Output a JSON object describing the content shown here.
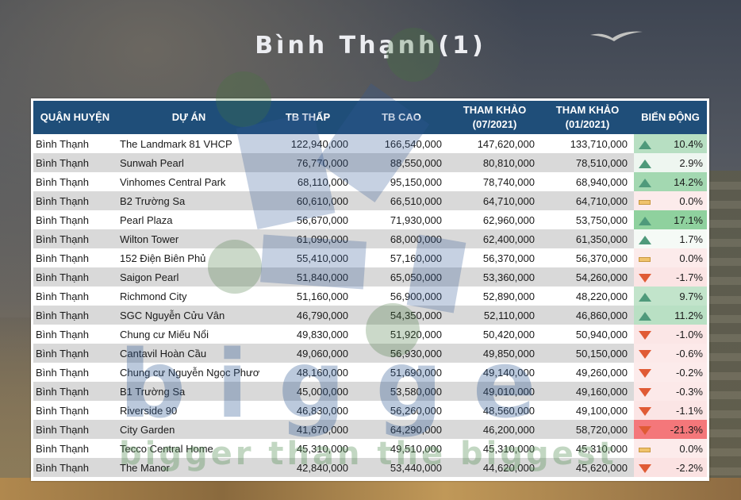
{
  "title": "Bình Thạnh(1)",
  "table": {
    "headers": {
      "district": "QUẬN HUYỆN",
      "project": "DỰ ÁN",
      "low": "TB THẤP",
      "high": "TB CAO",
      "ref_0721_line1": "THAM KHẢO",
      "ref_0721_line2": "(07/2021)",
      "ref_0121_line1": "THAM KHẢO",
      "ref_0121_line2": "(01/2021)",
      "change": "BIẾN ĐỘNG"
    },
    "rows": [
      {
        "district": "Bình Thạnh",
        "project": "The Landmark 81 VHCP",
        "low": "122,940,000",
        "high": "166,540,000",
        "ref_0721": "147,620,000",
        "ref_0121": "133,710,000",
        "change": "10.4%",
        "trend": "up"
      },
      {
        "district": "Bình Thạnh",
        "project": "Sunwah Pearl",
        "low": "76,770,000",
        "high": "88,550,000",
        "ref_0721": "80,810,000",
        "ref_0121": "78,510,000",
        "change": "2.9%",
        "trend": "up"
      },
      {
        "district": "Bình Thạnh",
        "project": "Vinhomes Central Park",
        "low": "68,110,000",
        "high": "95,150,000",
        "ref_0721": "78,740,000",
        "ref_0121": "68,940,000",
        "change": "14.2%",
        "trend": "up"
      },
      {
        "district": "Bình Thạnh",
        "project": "B2 Trường Sa",
        "low": "60,610,000",
        "high": "66,510,000",
        "ref_0721": "64,710,000",
        "ref_0121": "64,710,000",
        "change": "0.0%",
        "trend": "flat"
      },
      {
        "district": "Bình Thạnh",
        "project": "Pearl Plaza",
        "low": "56,670,000",
        "high": "71,930,000",
        "ref_0721": "62,960,000",
        "ref_0121": "53,750,000",
        "change": "17.1%",
        "trend": "up"
      },
      {
        "district": "Bình Thạnh",
        "project": "Wilton Tower",
        "low": "61,090,000",
        "high": "68,000,000",
        "ref_0721": "62,400,000",
        "ref_0121": "61,350,000",
        "change": "1.7%",
        "trend": "up"
      },
      {
        "district": "Bình Thạnh",
        "project": "152 Điện Biên Phủ",
        "low": "55,410,000",
        "high": "57,160,000",
        "ref_0721": "56,370,000",
        "ref_0121": "56,370,000",
        "change": "0.0%",
        "trend": "flat"
      },
      {
        "district": "Bình Thạnh",
        "project": "Saigon Pearl",
        "low": "51,840,000",
        "high": "65,050,000",
        "ref_0721": "53,360,000",
        "ref_0121": "54,260,000",
        "change": "-1.7%",
        "trend": "down"
      },
      {
        "district": "Bình Thạnh",
        "project": "Richmond City",
        "low": "51,160,000",
        "high": "56,900,000",
        "ref_0721": "52,890,000",
        "ref_0121": "48,220,000",
        "change": "9.7%",
        "trend": "up"
      },
      {
        "district": "Bình Thạnh",
        "project": "SGC Nguyễn Cửu Vân",
        "low": "46,790,000",
        "high": "54,350,000",
        "ref_0721": "52,110,000",
        "ref_0121": "46,860,000",
        "change": "11.2%",
        "trend": "up"
      },
      {
        "district": "Bình Thạnh",
        "project": "Chung cư Miếu Nổi",
        "low": "49,830,000",
        "high": "51,920,000",
        "ref_0721": "50,420,000",
        "ref_0121": "50,940,000",
        "change": "-1.0%",
        "trend": "down"
      },
      {
        "district": "Bình Thạnh",
        "project": "Cantavil Hoàn Cầu",
        "low": "49,060,000",
        "high": "56,930,000",
        "ref_0721": "49,850,000",
        "ref_0121": "50,150,000",
        "change": "-0.6%",
        "trend": "down"
      },
      {
        "district": "Bình Thạnh",
        "project": "Chung cư Nguyễn Ngọc Phươ",
        "low": "48,160,000",
        "high": "51,690,000",
        "ref_0721": "49,140,000",
        "ref_0121": "49,260,000",
        "change": "-0.2%",
        "trend": "down"
      },
      {
        "district": "Bình Thạnh",
        "project": "B1 Trường Sa",
        "low": "45,000,000",
        "high": "53,580,000",
        "ref_0721": "49,010,000",
        "ref_0121": "49,160,000",
        "change": "-0.3%",
        "trend": "down"
      },
      {
        "district": "Bình Thạnh",
        "project": "Riverside 90",
        "low": "46,830,000",
        "high": "56,260,000",
        "ref_0721": "48,560,000",
        "ref_0121": "49,100,000",
        "change": "-1.1%",
        "trend": "down"
      },
      {
        "district": "Bình Thạnh",
        "project": "City Garden",
        "low": "41,670,000",
        "high": "64,290,000",
        "ref_0721": "46,200,000",
        "ref_0121": "58,720,000",
        "change": "-21.3%",
        "trend": "down"
      },
      {
        "district": "Bình Thạnh",
        "project": "Tecco Central Home",
        "low": "45,310,000",
        "high": "49,510,000",
        "ref_0721": "45,310,000",
        "ref_0121": "45,310,000",
        "change": "0.0%",
        "trend": "flat"
      },
      {
        "district": "Bình Thạnh",
        "project": "The Manor",
        "low": "42,840,000",
        "high": "53,440,000",
        "ref_0721": "44,620,000",
        "ref_0121": "45,620,000",
        "change": "-2.2%",
        "trend": "down"
      }
    ],
    "change_colors": [
      "#b7dfc2",
      "#eef6f0",
      "#a3d8b1",
      "#fcebeb",
      "#8fd19e",
      "#f5faf6",
      "#fcebeb",
      "#fbe4e4",
      "#c2e4cb",
      "#b9e0c4",
      "#fbe6e6",
      "#fce9e9",
      "#fcebeb",
      "#fce9e9",
      "#fbe5e5",
      "#f4777a",
      "#fcebeb",
      "#fbe2e2"
    ]
  },
  "watermark": {
    "logo": "bigge",
    "tagline": "bigger than the biggest"
  },
  "colors": {
    "header_bg": "#1f4e79",
    "row_alt": "#d9d9d9",
    "up_icon": "#4f9a7b",
    "down_icon": "#e05b35",
    "flat_icon": "#f0c36c"
  }
}
